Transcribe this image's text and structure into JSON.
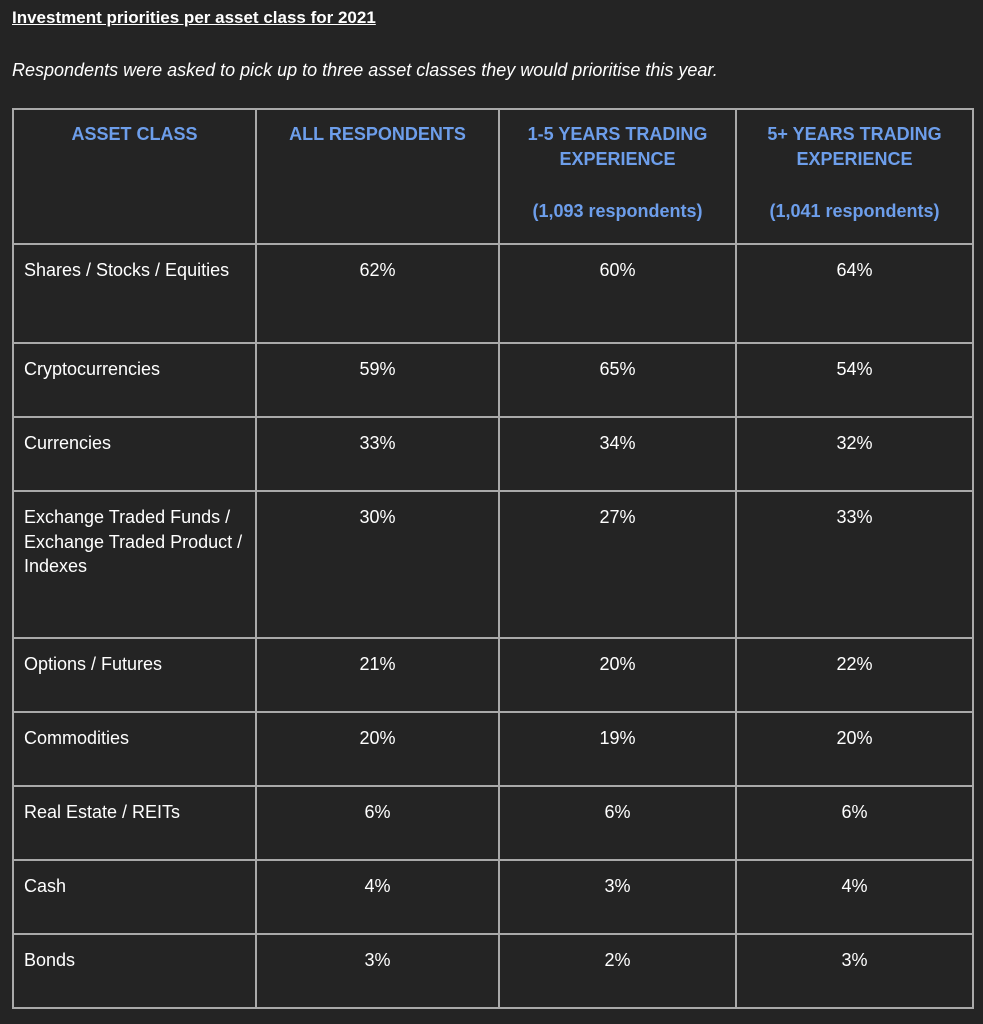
{
  "title": "Investment priorities per asset class for 2021",
  "subtitle": "Respondents were asked to pick up to three asset classes they would prioritise this year.",
  "colors": {
    "background": "#242424",
    "header_text": "#6d9eeb",
    "border": "#a9a9a9"
  },
  "table": {
    "headers": [
      {
        "label": "ASSET CLASS",
        "sub": ""
      },
      {
        "label": "ALL RESPONDENTS",
        "sub": ""
      },
      {
        "label": "1-5 YEARS TRADING EXPERIENCE",
        "sub": "(1,093 respondents)"
      },
      {
        "label": "5+ YEARS TRADING EXPERIENCE",
        "sub": "(1,041 respondents)"
      }
    ],
    "rows": [
      {
        "asset": "Shares / Stocks / Equities",
        "all": "62%",
        "y1_5": "60%",
        "y5plus": "64%"
      },
      {
        "asset": "Cryptocurrencies",
        "all": "59%",
        "y1_5": "65%",
        "y5plus": "54%"
      },
      {
        "asset": "Currencies",
        "all": "33%",
        "y1_5": "34%",
        "y5plus": "32%"
      },
      {
        "asset": "Exchange Traded Funds / Exchange Traded Product / Indexes",
        "all": "30%",
        "y1_5": "27%",
        "y5plus": "33%"
      },
      {
        "asset": "Options / Futures",
        "all": "21%",
        "y1_5": "20%",
        "y5plus": "22%"
      },
      {
        "asset": "Commodities",
        "all": "20%",
        "y1_5": "19%",
        "y5plus": "20%"
      },
      {
        "asset": "Real Estate / REITs",
        "all": "6%",
        "y1_5": "6%",
        "y5plus": "6%"
      },
      {
        "asset": "Cash",
        "all": "4%",
        "y1_5": "3%",
        "y5plus": "4%"
      },
      {
        "asset": "Bonds",
        "all": "3%",
        "y1_5": "2%",
        "y5plus": "3%"
      }
    ]
  }
}
